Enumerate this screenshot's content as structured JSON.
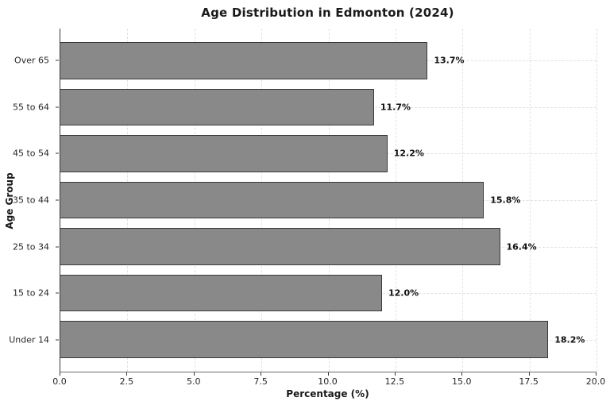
{
  "chart_data": {
    "type": "bar",
    "orientation": "horizontal",
    "title": "Age Distribution in Edmonton (2024)",
    "xlabel": "Percentage (%)",
    "ylabel": "Age Group",
    "categories": [
      "Over 65",
      "55 to 64",
      "45 to 54",
      "35 to 44",
      "25 to 34",
      "15 to 24",
      "Under 14"
    ],
    "values": [
      13.7,
      11.7,
      12.2,
      15.8,
      16.4,
      12.0,
      18.2
    ],
    "value_labels": [
      "13.7%",
      "11.7%",
      "12.2%",
      "15.8%",
      "16.4%",
      "12.0%",
      "18.2%"
    ],
    "xlim": [
      0,
      20
    ],
    "xticks": [
      0.0,
      2.5,
      5.0,
      7.5,
      10.0,
      12.5,
      15.0,
      17.5,
      20.0
    ],
    "xtick_labels": [
      "0.0",
      "2.5",
      "5.0",
      "7.5",
      "10.0",
      "12.5",
      "15.0",
      "17.5",
      "20.0"
    ],
    "grid": true,
    "grid_style": "dashed",
    "legend": "none",
    "bar_color": "#898989",
    "bar_edge_color": "#3a3a3a",
    "background_color": "#ffffff"
  }
}
